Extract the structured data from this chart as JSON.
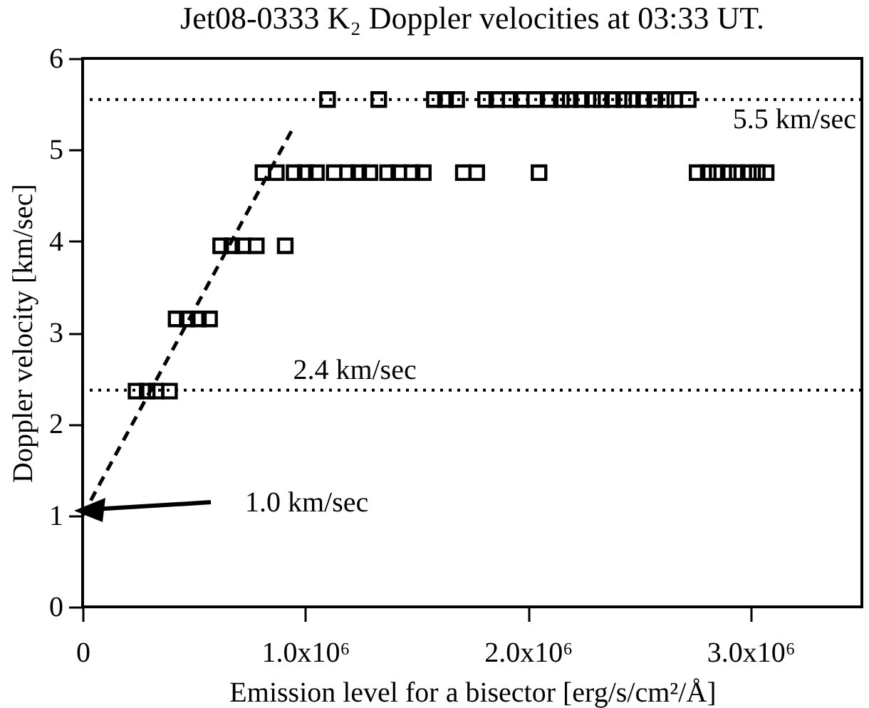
{
  "chart_data": {
    "type": "scatter",
    "title": "Jet08-0333 K₂ Doppler velocities at 03:33 UT.",
    "xlabel": "Emission level for a bisector [erg/s/cm²/Å]",
    "ylabel": "Doppler velocity [km/sec]",
    "xlim": [
      0,
      3500000
    ],
    "ylim": [
      0,
      6
    ],
    "xticks": [
      0,
      {
        "value": 1000000,
        "label": "1.0x10⁶"
      },
      {
        "value": 2000000,
        "label": "2.0x10⁶"
      },
      {
        "value": 3000000,
        "label": "3.0x10⁶"
      }
    ],
    "yticks": [
      0,
      1,
      2,
      3,
      4,
      5,
      6
    ],
    "grid": false,
    "marker": "square",
    "series": [
      {
        "type": "scatter",
        "color": "#000000",
        "x": [
          240000,
          290000,
          330000,
          390000,
          420000,
          470000,
          520000,
          570000,
          620000,
          670000,
          720000,
          780000,
          910000,
          810000,
          870000,
          950000,
          1000000,
          1050000,
          1130000,
          1190000,
          1240000,
          1290000,
          1370000,
          1420000,
          1480000,
          1530000,
          1710000,
          1770000,
          2050000,
          2760000,
          2810000,
          2850000,
          2900000,
          2940000,
          2990000,
          3030000,
          3070000,
          1100000,
          1330000,
          1580000,
          1630000,
          1680000,
          1810000,
          1860000,
          1920000,
          1970000,
          2030000,
          2100000,
          2150000,
          2190000,
          2240000,
          2290000,
          2330000,
          2380000,
          2430000,
          2470000,
          2520000,
          2570000,
          2620000,
          2660000,
          2720000
        ],
        "values": [
          2.36,
          2.36,
          2.36,
          2.36,
          3.15,
          3.15,
          3.15,
          3.15,
          3.95,
          3.95,
          3.95,
          3.95,
          3.95,
          4.75,
          4.75,
          4.75,
          4.75,
          4.75,
          4.75,
          4.75,
          4.75,
          4.75,
          4.75,
          4.75,
          4.75,
          4.75,
          4.75,
          4.75,
          4.75,
          4.75,
          4.75,
          4.75,
          4.75,
          4.75,
          4.75,
          4.75,
          4.75,
          5.55,
          5.55,
          5.55,
          5.55,
          5.55,
          5.55,
          5.55,
          5.55,
          5.55,
          5.55,
          5.55,
          5.55,
          5.55,
          5.55,
          5.55,
          5.55,
          5.55,
          5.55,
          5.55,
          5.55,
          5.55,
          5.55,
          5.55,
          5.55
        ]
      },
      {
        "type": "line",
        "color": "#000000",
        "line_style": "dashed",
        "marker": "none",
        "x": [
          0,
          950000
        ],
        "values": [
          1.0,
          5.26
        ]
      }
    ],
    "ref_lines": [
      {
        "axis": "y",
        "value": 2.37,
        "label": "2.4 km/sec",
        "line_style": "dotted",
        "color": "#000000"
      },
      {
        "axis": "y",
        "value": 5.55,
        "label": "5.5 km/sec",
        "line_style": "dotted",
        "color": "#000000"
      }
    ],
    "annotations": [
      "1.0 km/sec"
    ]
  }
}
